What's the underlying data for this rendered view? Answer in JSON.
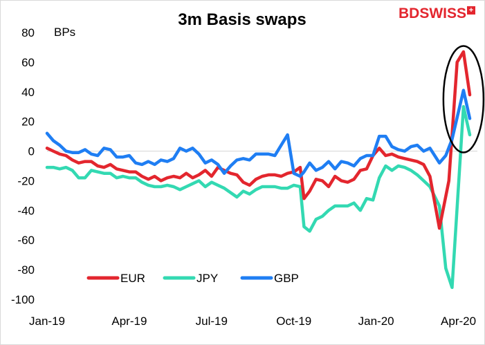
{
  "logo": {
    "part1": "BD",
    "part2": "SWISS",
    "badge": "+"
  },
  "chart_data": {
    "type": "line",
    "title": "3m Basis swaps",
    "ylabel": "BPs",
    "xlabel": "",
    "ylim": [
      -100,
      80
    ],
    "yticks": [
      80,
      60,
      40,
      20,
      0,
      -20,
      -40,
      -60,
      -80,
      -100
    ],
    "xlim": [
      0,
      68
    ],
    "xticks": [
      {
        "label": "Jan-19",
        "x": 0
      },
      {
        "label": "Apr-19",
        "x": 13
      },
      {
        "label": "Jul-19",
        "x": 26
      },
      {
        "label": "Oct-19",
        "x": 39
      },
      {
        "label": "Jan-20",
        "x": 52
      },
      {
        "label": "Apr-20",
        "x": 65
      }
    ],
    "legend_position": "bottom-left",
    "annotation": "ellipse highlighting April 2020 spike",
    "series": [
      {
        "name": "EUR",
        "color": "#e3262e",
        "values": [
          2,
          0,
          -2,
          -3,
          -6,
          -8,
          -7,
          -7,
          -10,
          -11,
          -9,
          -12,
          -13,
          -14,
          -14,
          -17,
          -19,
          -17,
          -20,
          -18,
          -17,
          -18,
          -15,
          -18,
          -16,
          -13,
          -17,
          -11,
          -13,
          -15,
          -16,
          -21,
          -23,
          -19,
          -17,
          -16,
          -16,
          -17,
          -15,
          -14,
          -11,
          -32,
          -27,
          -19,
          -20,
          -24,
          -17,
          -20,
          -21,
          -19,
          -13,
          -12,
          -3,
          2,
          -3,
          -2,
          -4,
          -5,
          -6,
          -7,
          -9,
          -17,
          -52,
          -20,
          60,
          67,
          38
        ],
        "x": [
          0,
          1,
          2,
          3,
          4,
          5,
          6,
          7,
          8,
          9,
          10,
          11,
          12,
          13,
          14,
          15,
          16,
          17,
          18,
          19,
          20,
          21,
          22,
          23,
          24,
          25,
          26,
          27,
          28,
          29,
          30,
          31,
          32,
          33,
          34,
          35,
          36,
          37,
          38,
          39,
          40,
          40.6,
          41.5,
          42.5,
          43.5,
          44.5,
          45.5,
          46.5,
          47.5,
          48.5,
          49.5,
          50.5,
          51.5,
          52.5,
          53.5,
          54.5,
          55.5,
          56.5,
          57.5,
          58.5,
          59.5,
          60.5,
          62,
          63.5,
          64.8,
          65.8,
          66.8
        ]
      },
      {
        "name": "JPY",
        "color": "#33d9b2",
        "values": [
          -11,
          -11,
          -12,
          -11,
          -13,
          -18,
          -18,
          -13,
          -14,
          -15,
          -15,
          -18,
          -17,
          -18,
          -18,
          -21,
          -23,
          -24,
          -24,
          -23,
          -24,
          -26,
          -24,
          -22,
          -20,
          -24,
          -21,
          -23,
          -25,
          -28,
          -31,
          -27,
          -29,
          -26,
          -24,
          -24,
          -24,
          -25,
          -25,
          -23,
          -24,
          -51,
          -54,
          -46,
          -44,
          -40,
          -37,
          -37,
          -37,
          -35,
          -40,
          -32,
          -33,
          -18,
          -10,
          -13,
          -10,
          -11,
          -13,
          -16,
          -20,
          -24,
          -37,
          -79,
          -92,
          30,
          11
        ],
        "x": [
          0,
          1,
          2,
          3,
          4,
          5,
          6,
          7,
          8,
          9,
          10,
          11,
          12,
          13,
          14,
          15,
          16,
          17,
          18,
          19,
          20,
          21,
          22,
          23,
          24,
          25,
          26,
          27,
          28,
          29,
          30,
          31,
          32,
          33,
          34,
          35,
          36,
          37,
          38,
          39,
          40,
          40.6,
          41.5,
          42.5,
          43.5,
          44.5,
          45.5,
          46.5,
          47.5,
          48.5,
          49.5,
          50.5,
          51.5,
          52.5,
          53.5,
          54.5,
          55.5,
          56.5,
          57.5,
          58.5,
          59.5,
          60.5,
          62,
          63,
          64,
          65.8,
          66.8
        ]
      },
      {
        "name": "GBP",
        "color": "#1f7ef3",
        "values": [
          12,
          7,
          4,
          0,
          -1,
          -1,
          1,
          -2,
          -3,
          2,
          1,
          -4,
          -4,
          -3,
          -8,
          -9,
          -7,
          -9,
          -6,
          -7,
          -5,
          2,
          0,
          2,
          -2,
          -8,
          -6,
          -9,
          -15,
          -10,
          -6,
          -5,
          -6,
          -2,
          -2,
          -2,
          -3,
          4,
          11,
          -15,
          -17,
          -14,
          -8,
          -13,
          -11,
          -7,
          -12,
          -7,
          -8,
          -10,
          -5,
          -3,
          -3,
          10,
          10,
          3,
          1,
          0,
          3,
          4,
          0,
          2,
          -8,
          -3,
          8,
          41,
          22
        ],
        "x": [
          0,
          1,
          2,
          3,
          4,
          5,
          6,
          7,
          8,
          9,
          10,
          11,
          12,
          13,
          14,
          15,
          16,
          17,
          18,
          19,
          20,
          21,
          22,
          23,
          24,
          25,
          26,
          27,
          28,
          29,
          30,
          31,
          32,
          33,
          34,
          35,
          36,
          37,
          38,
          39,
          40,
          40.6,
          41.5,
          42.5,
          43.5,
          44.5,
          45.5,
          46.5,
          47.5,
          48.5,
          49.5,
          50.5,
          51.5,
          52.5,
          53.5,
          54.5,
          55.5,
          56.5,
          57.5,
          58.5,
          59.5,
          60.5,
          62,
          63,
          64,
          65.8,
          66.8
        ]
      }
    ]
  }
}
